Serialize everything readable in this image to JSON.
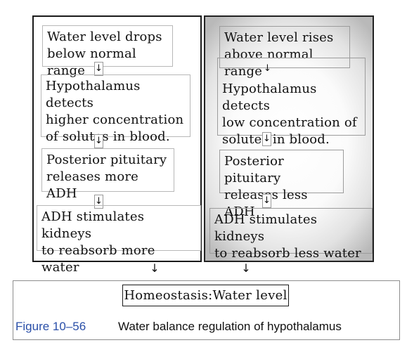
{
  "left_column": {
    "steps": [
      "Water level drops\nbelow normal range",
      "Hypothalamus detects\nhigher concentration\nof solutes in blood.",
      "Posterior pituitary\nreleases more ADH",
      "ADH stimulates kidneys\nto reabsorb more water"
    ]
  },
  "right_column": {
    "steps": [
      "Water level rises\nabove normal range",
      "Hypothalamus detects\nlow concentration of\nsolutes in blood.",
      "Posterior pituitary\nreleases less ADH",
      "ADH stimulates kidneys\nto reabsorb less water"
    ]
  },
  "arrow_glyph": "↓",
  "outcome": "Homeostasis:Water level",
  "caption": {
    "number": "Figure 10–56",
    "text": "Water balance regulation of hypothalamus"
  },
  "colors": {
    "caption_number": "#2a4fa8",
    "border": "#1a1a1a"
  }
}
